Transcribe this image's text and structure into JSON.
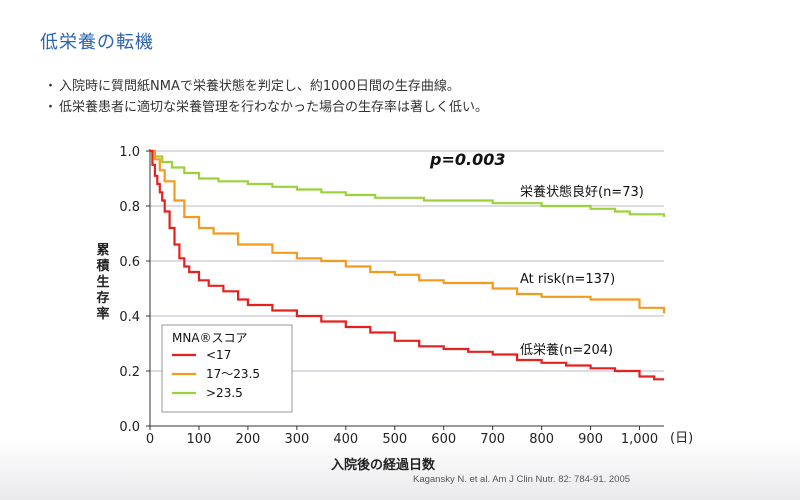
{
  "slide": {
    "title": "低栄養の転機",
    "bullets": [
      "入院時に質問紙NMAで栄養状態を判定し、約1000日間の生存曲線。",
      "低栄養患者に適切な栄養管理を行わなかった場合の生存率は著しく低い。"
    ],
    "citation": "Kagansky N. et al.  Am J Clin Nutr. 82: 784-91. 2005"
  },
  "chart_data": {
    "type": "line",
    "xlabel": "入院後の経過日数",
    "xunit": "(日)",
    "ylabel": "累積生存率",
    "xlim": [
      0,
      1050
    ],
    "ylim": [
      0,
      1.0
    ],
    "xticks": [
      0,
      100,
      200,
      300,
      400,
      500,
      600,
      700,
      800,
      900,
      1000
    ],
    "xtick_labels": [
      "0",
      "100",
      "200",
      "300",
      "400",
      "500",
      "600",
      "700",
      "800",
      "900",
      "1,000"
    ],
    "yticks": [
      0.0,
      0.2,
      0.4,
      0.6,
      0.8,
      1.0
    ],
    "ytick_labels": [
      "0.0",
      "0.2",
      "0.4",
      "0.6",
      "0.8",
      "1.0"
    ],
    "grid": "horizontal",
    "annotation": "p=0.003",
    "legend": {
      "title": "MNA®スコア",
      "position": "bottom-left",
      "entries": [
        "<17",
        "17〜23.5",
        ">23.5"
      ]
    },
    "series": [
      {
        "legend": ">23.5",
        "label": "栄養状態良好(n=73)",
        "color": "#9ad23c",
        "x": [
          0,
          10,
          25,
          45,
          70,
          100,
          140,
          200,
          250,
          300,
          350,
          400,
          460,
          500,
          560,
          600,
          700,
          800,
          900,
          950,
          980,
          1050
        ],
        "y": [
          1.0,
          0.98,
          0.96,
          0.94,
          0.92,
          0.9,
          0.89,
          0.88,
          0.87,
          0.86,
          0.85,
          0.84,
          0.83,
          0.83,
          0.82,
          0.82,
          0.81,
          0.8,
          0.79,
          0.78,
          0.77,
          0.76
        ]
      },
      {
        "legend": "17〜23.5",
        "label": "At risk(n=137)",
        "color": "#f39b1f",
        "x": [
          0,
          10,
          20,
          30,
          50,
          70,
          100,
          130,
          180,
          250,
          300,
          350,
          400,
          450,
          500,
          550,
          600,
          700,
          750,
          800,
          900,
          1000,
          1050
        ],
        "y": [
          1.0,
          0.97,
          0.93,
          0.89,
          0.82,
          0.76,
          0.72,
          0.7,
          0.66,
          0.63,
          0.61,
          0.6,
          0.58,
          0.56,
          0.55,
          0.53,
          0.52,
          0.5,
          0.48,
          0.47,
          0.46,
          0.43,
          0.41
        ]
      },
      {
        "legend": "<17",
        "label": "低栄養(n=204)",
        "color": "#e8201d",
        "x": [
          0,
          5,
          10,
          15,
          20,
          25,
          30,
          40,
          50,
          60,
          70,
          80,
          100,
          120,
          150,
          180,
          200,
          250,
          300,
          350,
          400,
          450,
          500,
          550,
          600,
          650,
          700,
          750,
          800,
          850,
          900,
          950,
          1000,
          1030,
          1050
        ],
        "y": [
          1.0,
          0.95,
          0.91,
          0.88,
          0.85,
          0.82,
          0.78,
          0.72,
          0.66,
          0.61,
          0.58,
          0.56,
          0.53,
          0.51,
          0.49,
          0.46,
          0.44,
          0.42,
          0.4,
          0.38,
          0.36,
          0.34,
          0.31,
          0.29,
          0.28,
          0.27,
          0.26,
          0.24,
          0.23,
          0.22,
          0.21,
          0.2,
          0.18,
          0.17,
          0.17
        ]
      }
    ]
  }
}
